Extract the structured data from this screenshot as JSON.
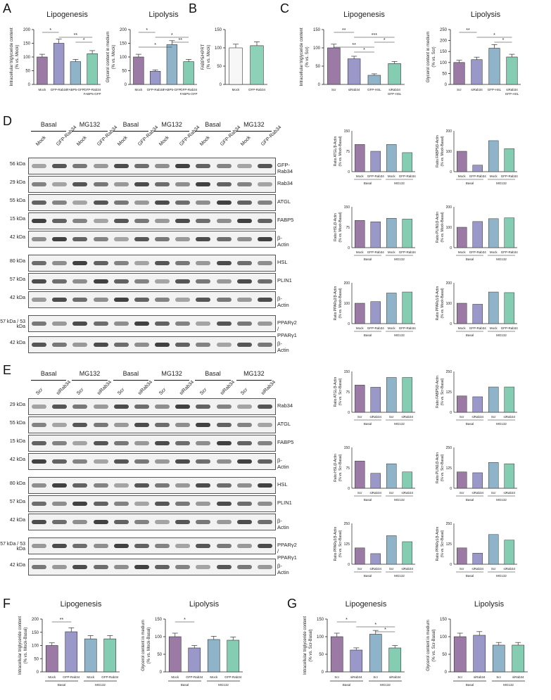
{
  "panels": {
    "A": {
      "letter": "A",
      "sub": [
        {
          "title": "Lipogenesis",
          "ylabel": "Intracellular triglyceride content\n(% vs. Mock)",
          "cats": [
            "Mock",
            "GFP-Rab34",
            "FABP5-GFP",
            "GFP-Rab34 FABP5-GFP"
          ],
          "values": [
            100,
            150,
            83,
            112
          ],
          "ymax": 200,
          "ticks": [
            0,
            50,
            100,
            150,
            200
          ],
          "stars": [
            "*",
            "**",
            "*"
          ]
        },
        {
          "title": "Lipolysis",
          "ylabel": "Glycerol content in medium\n(% vs. Mock)",
          "cats": [
            "Mock",
            "GFP-Rab34",
            "FABP5-GFP",
            "GFP-Rab34 FABP5-GFP"
          ],
          "values": [
            100,
            48,
            145,
            83
          ],
          "ymax": 200,
          "ticks": [
            0,
            50,
            100,
            150,
            200
          ],
          "stars": [
            "*",
            "*",
            "**",
            "*"
          ]
        }
      ]
    },
    "B": {
      "letter": "B",
      "sub": [
        {
          "title": "",
          "ylabel": "FABP5/HPRT\n(% vs. Mock)",
          "cats": [
            "Mock",
            "GFP-Rab34"
          ],
          "values": [
            100,
            106
          ],
          "ymax": 150,
          "ticks": [
            0,
            50,
            100,
            150
          ],
          "stars": []
        }
      ]
    },
    "C": {
      "letter": "C",
      "sub": [
        {
          "title": "Lipogenesis",
          "ylabel": "Intracellular triglyceride content\n(% vs. Scr)",
          "cats": [
            "Scr",
            "siRab34",
            "GFP-HSL",
            "siRab34 GFP-HSL"
          ],
          "values": [
            100,
            70,
            25,
            57
          ],
          "ymax": 150,
          "ticks": [
            0,
            50,
            100,
            150
          ],
          "stars": [
            "**",
            "***",
            "*",
            "**",
            "*"
          ]
        },
        {
          "title": "Lipolysis",
          "ylabel": "Glycerol content in medium\n(% vs. Scr)",
          "cats": [
            "Scr",
            "siRab34",
            "GFP-HSL",
            "siRab34 GFP-HSL"
          ],
          "values": [
            100,
            113,
            165,
            125
          ],
          "ymax": 250,
          "ticks": [
            0,
            50,
            100,
            150,
            200,
            250
          ],
          "stars": [
            "**",
            "*",
            "*"
          ]
        }
      ]
    },
    "D": {
      "letter": "D",
      "conditions": [
        "Basal",
        "MG132",
        "Basal",
        "MG132",
        "Basal",
        "MG132"
      ],
      "lanes": [
        "Mock",
        "GFP-Rab34",
        "Mock",
        "GFP-Rab34",
        "Mock",
        "GFP-Rab34",
        "Mock",
        "GFP-Rab34",
        "Mock",
        "GFP-Rab34",
        "Mock",
        "GFP-Rab34"
      ],
      "rows": [
        {
          "kda": "56 kDa",
          "prot": "GFP-Rab34"
        },
        {
          "kda": "29 kDa",
          "prot": "Rab34"
        },
        {
          "kda": "55 kDa",
          "prot": "ATGL"
        },
        {
          "kda": "15 kDa",
          "prot": "FABP5"
        },
        {
          "kda": "42 kDa",
          "prot": "β-Actin"
        },
        {
          "kda": "80 kDa",
          "prot": "HSL"
        },
        {
          "kda": "57 kDa",
          "prot": "PLIN1"
        },
        {
          "kda": "42 kDa",
          "prot": "β-Actin"
        },
        {
          "kda": "57 kDa / 53 kDa",
          "prot": "PPARγ2 / PPARγ1"
        },
        {
          "kda": "42 kDa",
          "prot": "β-Actin"
        }
      ],
      "quant": [
        {
          "ylabel": "Ratio ATGL/β-Actin\n(% vs. Mock-Basal)",
          "values": [
            100,
            75,
            100,
            70
          ],
          "ymax": 150
        },
        {
          "ylabel": "Ratio FABP5/β-Actin\n(% vs. Mock-Basal)",
          "values": [
            100,
            32,
            152,
            113
          ],
          "ymax": 200
        },
        {
          "ylabel": "Ratio HSL/β-Actin\n(% vs. Mock-Basal)",
          "values": [
            100,
            95,
            108,
            105
          ],
          "ymax": 150
        },
        {
          "ylabel": "Ratio PLIN1/β-Actin\n(% vs. Mock-Basal)",
          "values": [
            100,
            128,
            142,
            146
          ],
          "ymax": 200
        },
        {
          "ylabel": "Ratio PPARγ2/β-Actin\n(% vs. Mock-Basal)",
          "values": [
            100,
            108,
            150,
            155
          ],
          "ymax": 200
        },
        {
          "ylabel": "Ratio PPARγ1/β-Actin\n(% vs. Mock-Basal)",
          "values": [
            100,
            95,
            155,
            152
          ],
          "ymax": 200
        }
      ],
      "qcats": [
        "Mock",
        "GFP-Rab34",
        "Mock",
        "GFP-Rab34"
      ],
      "qgroups": [
        "Basal",
        "MG132"
      ]
    },
    "E": {
      "letter": "E",
      "conditions": [
        "Basal",
        "MG132",
        "Basal",
        "MG132",
        "Basal",
        "MG132"
      ],
      "lanes": [
        "Scr",
        "siRab34",
        "Scr",
        "siRab34",
        "Scr",
        "siRab34",
        "Scr",
        "siRab34",
        "Scr",
        "siRab34",
        "Scr",
        "siRab34"
      ],
      "rows": [
        {
          "kda": "29 kDa",
          "prot": "Rab34"
        },
        {
          "kda": "55 kDa",
          "prot": "ATGL"
        },
        {
          "kda": "15 kDa",
          "prot": "FABP5"
        },
        {
          "kda": "42 kDa",
          "prot": "β-Actin"
        },
        {
          "kda": "80 kDa",
          "prot": "HSL"
        },
        {
          "kda": "57 kDa",
          "prot": "PLIN1"
        },
        {
          "kda": "42 kDa",
          "prot": "β-Actin"
        },
        {
          "kda": "57 kDa / 53 kDa",
          "prot": "PPARγ2 / PPARγ1"
        },
        {
          "kda": "42 kDa",
          "prot": "β-Actin"
        }
      ],
      "quant": [
        {
          "ylabel": "Ratio ATGL/β-Actin\n(% vs. Scr-Basal)",
          "values": [
            100,
            92,
            128,
            128
          ],
          "ymax": 150
        },
        {
          "ylabel": "Ratio FABP5/β-Actin\n(% vs. Scr-Basal)",
          "values": [
            100,
            95,
            155,
            155
          ],
          "ymax": 250
        },
        {
          "ylabel": "Ratio HSL/β-Actin\n(% vs. Scr-Basal)",
          "values": [
            100,
            55,
            90,
            60
          ],
          "ymax": 150
        },
        {
          "ylabel": "Ratio PLIN1/β-Actin\n(% vs. Scr-Basal)",
          "values": [
            100,
            95,
            158,
            150
          ],
          "ymax": 250
        },
        {
          "ylabel": "Ratio PPARγ2/β-Actin\n(% vs. Scr-Basal)",
          "values": [
            100,
            65,
            175,
            138
          ],
          "ymax": 250
        },
        {
          "ylabel": "Ratio PPARγ1/β-Actin\n(% vs. Scr-Basal)",
          "values": [
            100,
            68,
            182,
            148
          ],
          "ymax": 250
        }
      ],
      "qcats": [
        "Scr",
        "siRab34",
        "Scr",
        "siRab34"
      ],
      "qgroups": [
        "Basal",
        "MG132"
      ]
    },
    "F": {
      "letter": "F",
      "sub": [
        {
          "title": "Lipogenesis",
          "ylabel": "Intracellular triglyceride content\n(% vs. Mock-Basal)",
          "cats": [
            "Mock",
            "GFP-Rab34",
            "Mock",
            "GFP-Rab34"
          ],
          "groups": [
            "Basal",
            "MG132"
          ],
          "values": [
            100,
            152,
            125,
            125
          ],
          "ymax": 200,
          "ticks": [
            0,
            50,
            100,
            150,
            200
          ],
          "stars": [
            "**"
          ]
        },
        {
          "title": "Lipolysis",
          "ylabel": "Glycerol content in medium\n(% vs. Mock-Basal)",
          "cats": [
            "Mock",
            "GFP-Rab34",
            "Mock",
            "GFP-Rab34"
          ],
          "groups": [
            "Basal",
            "MG132"
          ],
          "values": [
            100,
            68,
            92,
            90
          ],
          "ymax": 150,
          "ticks": [
            0,
            50,
            100,
            150
          ],
          "stars": [
            "*"
          ]
        }
      ]
    },
    "G": {
      "letter": "G",
      "sub": [
        {
          "title": "Lipogenesis",
          "ylabel": "Intracellular triglyceride content\n(% vs. Scr-Basal)",
          "cats": [
            "Scr",
            "siRab34",
            "Scr",
            "siRab34"
          ],
          "groups": [
            "Basal",
            "MG132"
          ],
          "values": [
            100,
            62,
            107,
            68
          ],
          "ymax": 150,
          "ticks": [
            0,
            50,
            100,
            150
          ],
          "stars": [
            "*",
            "*",
            "*"
          ]
        },
        {
          "title": "Lipolysis",
          "ylabel": "Glycerol content in medium\n(% vs. Scr-Basal)",
          "cats": [
            "Scr",
            "siRab34",
            "Scr",
            "siRab34"
          ],
          "groups": [
            "Basal",
            "MG132"
          ],
          "values": [
            100,
            104,
            76,
            76
          ],
          "ymax": 150,
          "ticks": [
            0,
            50,
            100,
            150
          ],
          "stars": []
        }
      ]
    }
  },
  "colors": {
    "mock": "#9b7aa6",
    "treat": "#9a98c9",
    "mg_mock": "#8fb4c9",
    "mg_treat": "#84cdb3",
    "b_mock": "#f7f7f7",
    "b_treat": "#8ed1b9"
  }
}
